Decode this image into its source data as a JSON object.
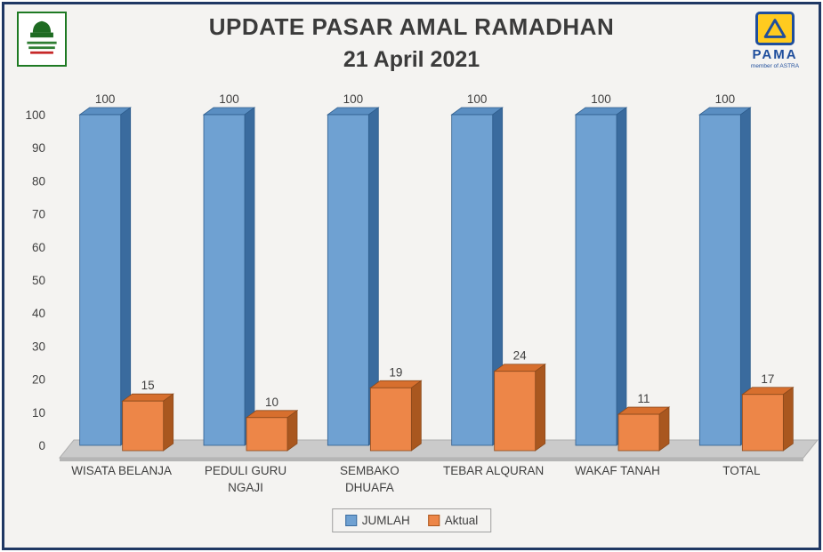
{
  "page": {
    "title_line1": "UPDATE PASAR AMAL RAMADHAN",
    "title_line2": "21 April 2021",
    "background": "#F4F3F1",
    "border_color": "#1F3864"
  },
  "logos": {
    "pama": {
      "text": "PAMA",
      "subtext": "member of ASTRA",
      "mark_fill": "#FFCB1F",
      "mark_border": "#1F4E9C"
    },
    "left_logo": {
      "icon": "mosque-emblem-icon",
      "frame_color": "#1E7A23"
    }
  },
  "chart_data": {
    "type": "bar",
    "style": "3d-clustered-column",
    "title": "UPDATE PASAR AMAL RAMADHAN 21 April 2021",
    "categories": [
      "WISATA BELANJA",
      "PEDULI GURU NGAJI",
      "SEMBAKO DHUAFA",
      "TEBAR ALQURAN",
      "WAKAF TANAH",
      "TOTAL"
    ],
    "category_lines": [
      [
        "WISATA BELANJA"
      ],
      [
        "PEDULI GURU",
        "NGAJI"
      ],
      [
        "SEMBAKO",
        "DHUAFA"
      ],
      [
        "TEBAR ALQURAN"
      ],
      [
        "WAKAF TANAH"
      ],
      [
        "TOTAL"
      ]
    ],
    "series": [
      {
        "name": "JUMLAH",
        "values": [
          100,
          100,
          100,
          100,
          100,
          100
        ],
        "colors": {
          "front": "#6FA1D2",
          "top": "#5A8EC2",
          "side": "#3A6B9E",
          "outline": "#2F5E8E"
        }
      },
      {
        "name": "Aktual",
        "values": [
          15,
          10,
          19,
          24,
          11,
          17
        ],
        "colors": {
          "front": "#ED8648",
          "top": "#D76F2E",
          "side": "#A9571F",
          "outline": "#8C4A1C"
        }
      }
    ],
    "ylim": [
      0,
      100
    ],
    "ytick_step": 10,
    "grid": false,
    "legend_position": "bottom",
    "data_labels": true,
    "floor_color": "#CACACA",
    "xlabel": "",
    "ylabel": ""
  }
}
